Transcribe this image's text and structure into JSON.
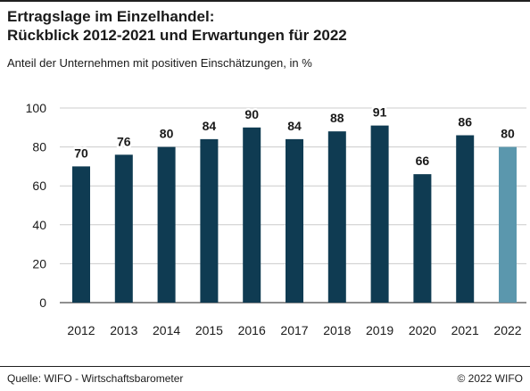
{
  "header": {
    "title_line1": "Ertragslage im Einzelhandel:",
    "title_line2": "Rückblick 2012-2021 und Erwartungen für 2022",
    "subtitle": "Anteil der Unternehmen mit positiven Einschätzungen, in %"
  },
  "footer": {
    "source": "Quelle: WIFO - Wirtschaftsbarometer",
    "copyright": "© 2022 WIFO"
  },
  "colors": {
    "bar": "#0f3b52",
    "bar_forecast": "#5b97ad",
    "grid": "#cccccc",
    "rule": "#1f1f1f"
  },
  "chart_data": {
    "type": "bar",
    "title": "Ertragslage im Einzelhandel: Rückblick 2012-2021 und Erwartungen für 2022",
    "subtitle": "Anteil der Unternehmen mit positiven Einschätzungen, in %",
    "xlabel": "",
    "ylabel": "",
    "categories": [
      "2012",
      "2013",
      "2014",
      "2015",
      "2016",
      "2017",
      "2018",
      "2019",
      "2020",
      "2021",
      "2022"
    ],
    "values": [
      70,
      76,
      80,
      84,
      90,
      84,
      88,
      91,
      66,
      86,
      80
    ],
    "forecast_categories": [
      "2022"
    ],
    "ylim": [
      0,
      100
    ],
    "yticks": [
      0,
      20,
      40,
      60,
      80,
      100
    ],
    "grid": true,
    "legend": "none"
  }
}
